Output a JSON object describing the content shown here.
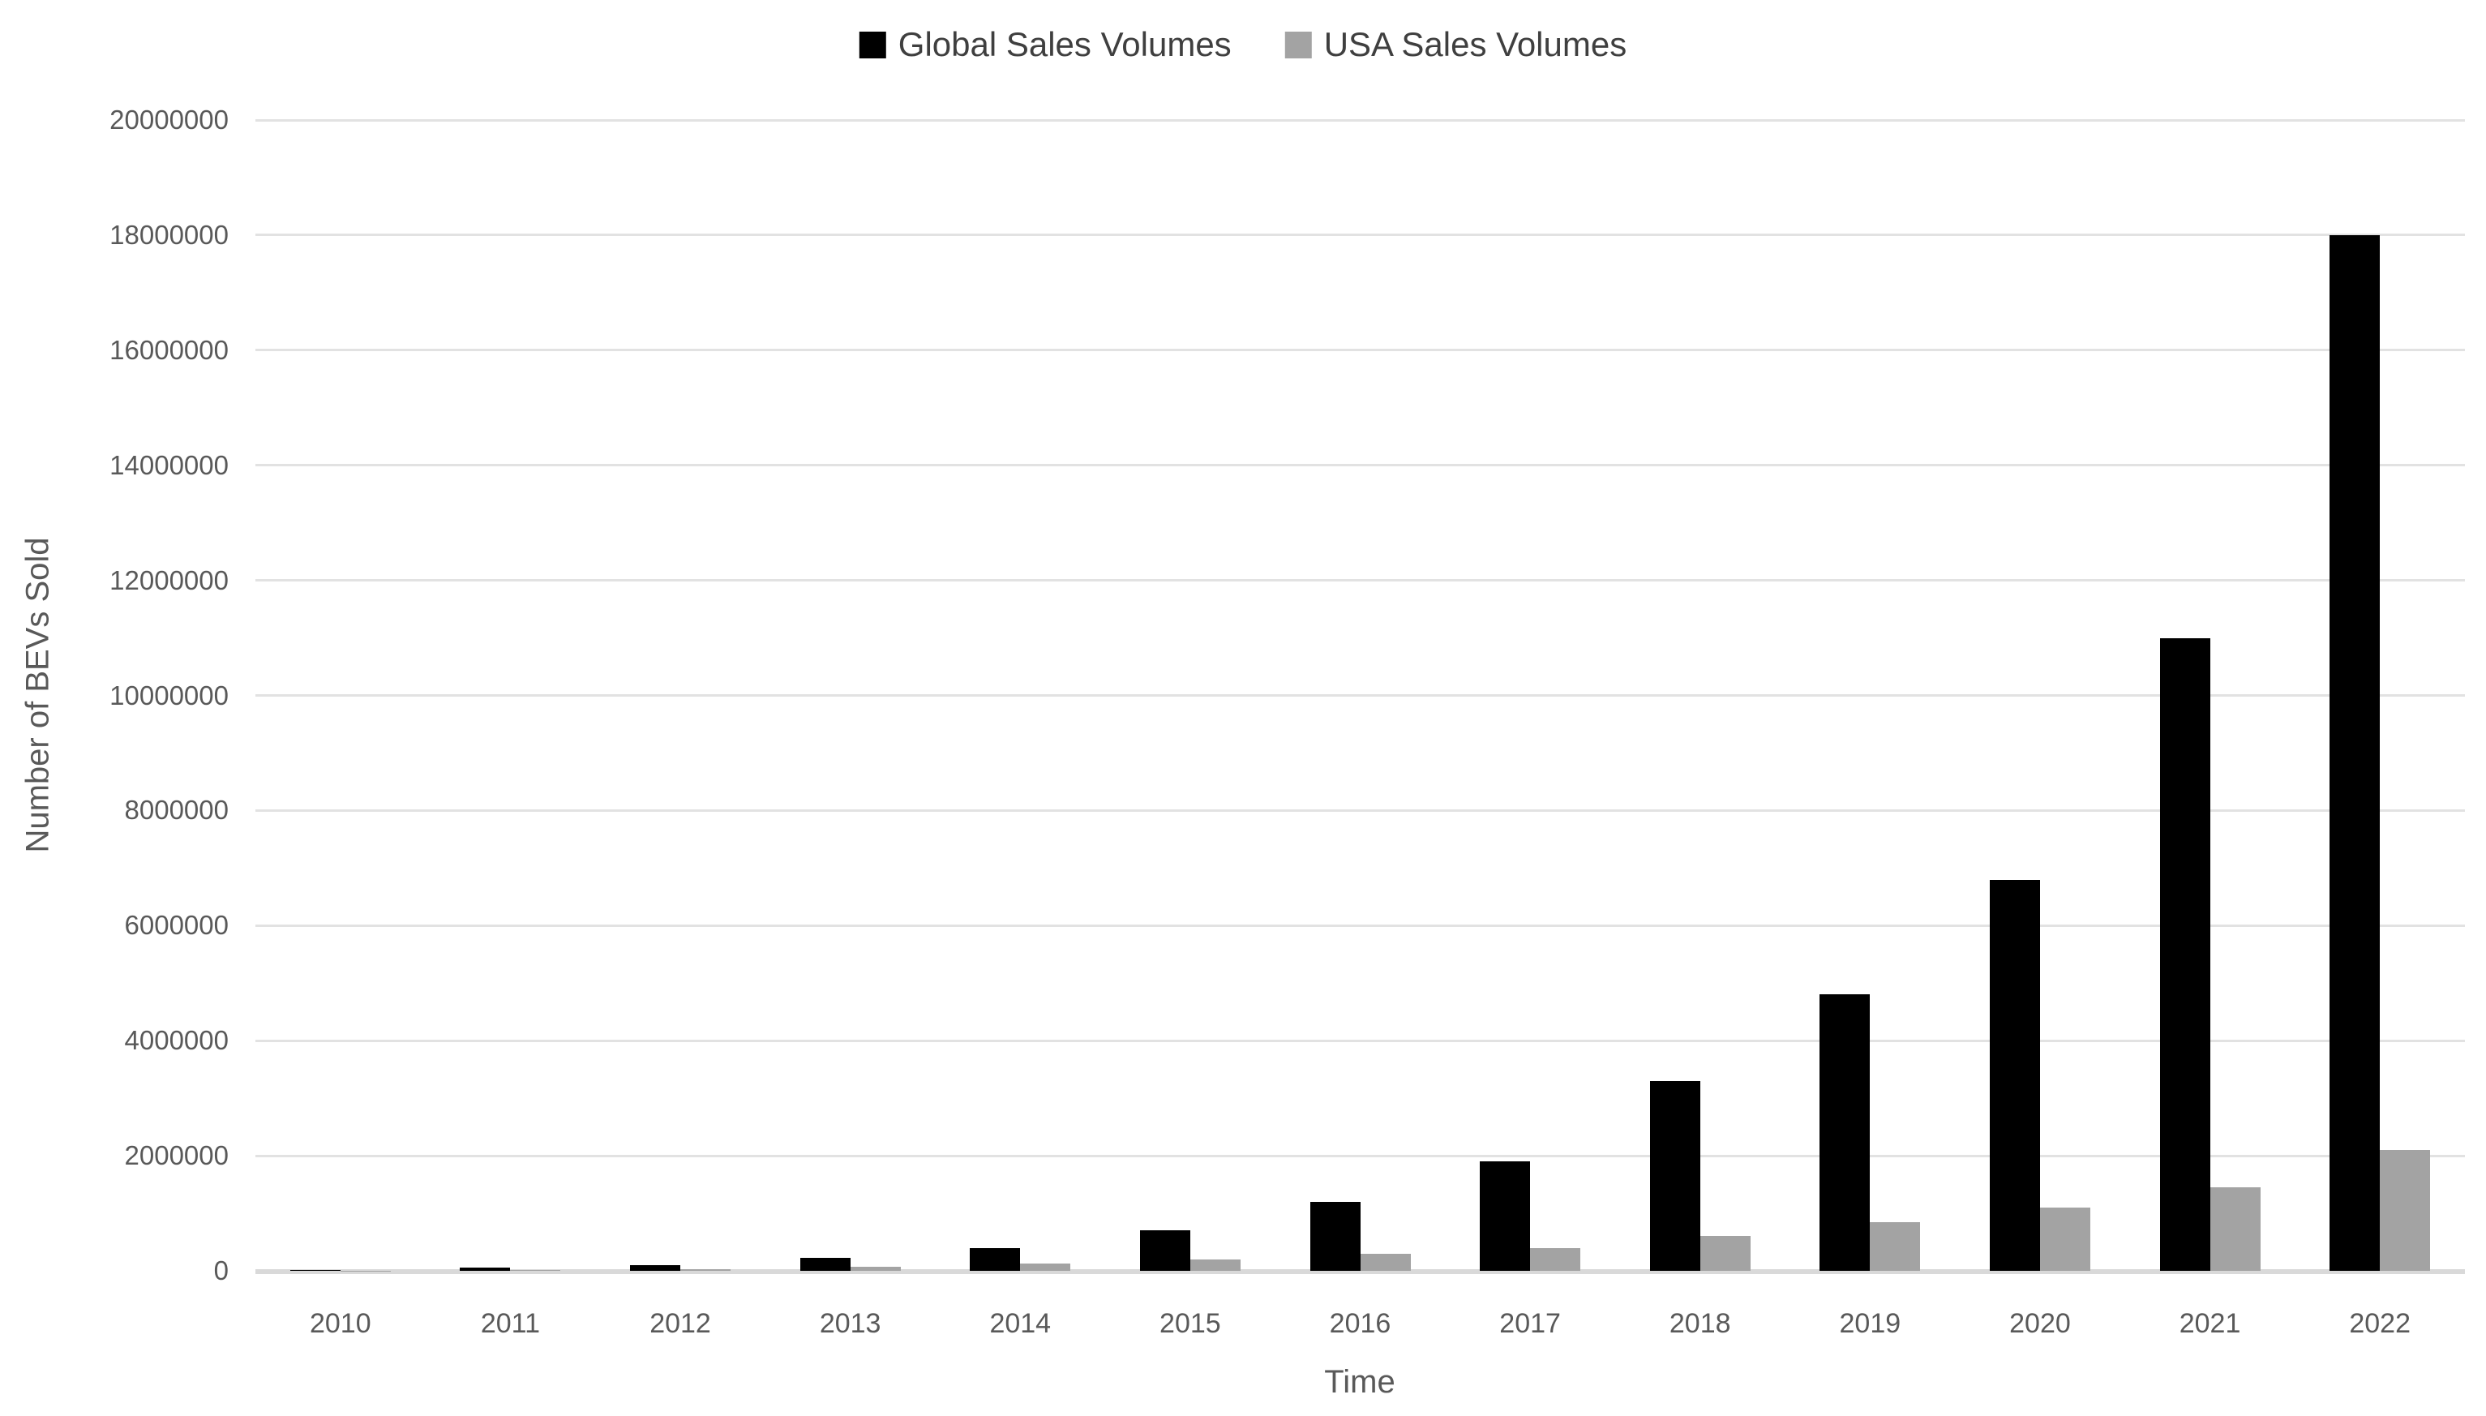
{
  "chart_data": {
    "type": "bar",
    "title": "",
    "categories": [
      "2010",
      "2011",
      "2012",
      "2013",
      "2014",
      "2015",
      "2016",
      "2017",
      "2018",
      "2019",
      "2020",
      "2021",
      "2022"
    ],
    "series": [
      {
        "name": "Global Sales Volumes",
        "color": "#000000",
        "values": [
          20000,
          50000,
          100000,
          230000,
          400000,
          700000,
          1200000,
          1900000,
          3300000,
          4800000,
          6800000,
          11000000,
          18000000
        ]
      },
      {
        "name": "USA Sales Volumes",
        "color": "#a3a3a3",
        "values": [
          2000,
          10000,
          30000,
          70000,
          120000,
          200000,
          300000,
          400000,
          600000,
          850000,
          1100000,
          1450000,
          2100000
        ]
      }
    ],
    "xlabel": "Time",
    "ylabel": "Number of BEVs Sold",
    "ylim": [
      0,
      20000000
    ],
    "y_ticks": [
      0,
      2000000,
      4000000,
      6000000,
      8000000,
      10000000,
      12000000,
      14000000,
      16000000,
      18000000,
      20000000
    ],
    "grid": "horizontal",
    "legend_position": "top-center",
    "gridline_color": "#e2e2e2",
    "axis_line_color": "#d9d9d9",
    "tick_text_color": "#595959"
  }
}
